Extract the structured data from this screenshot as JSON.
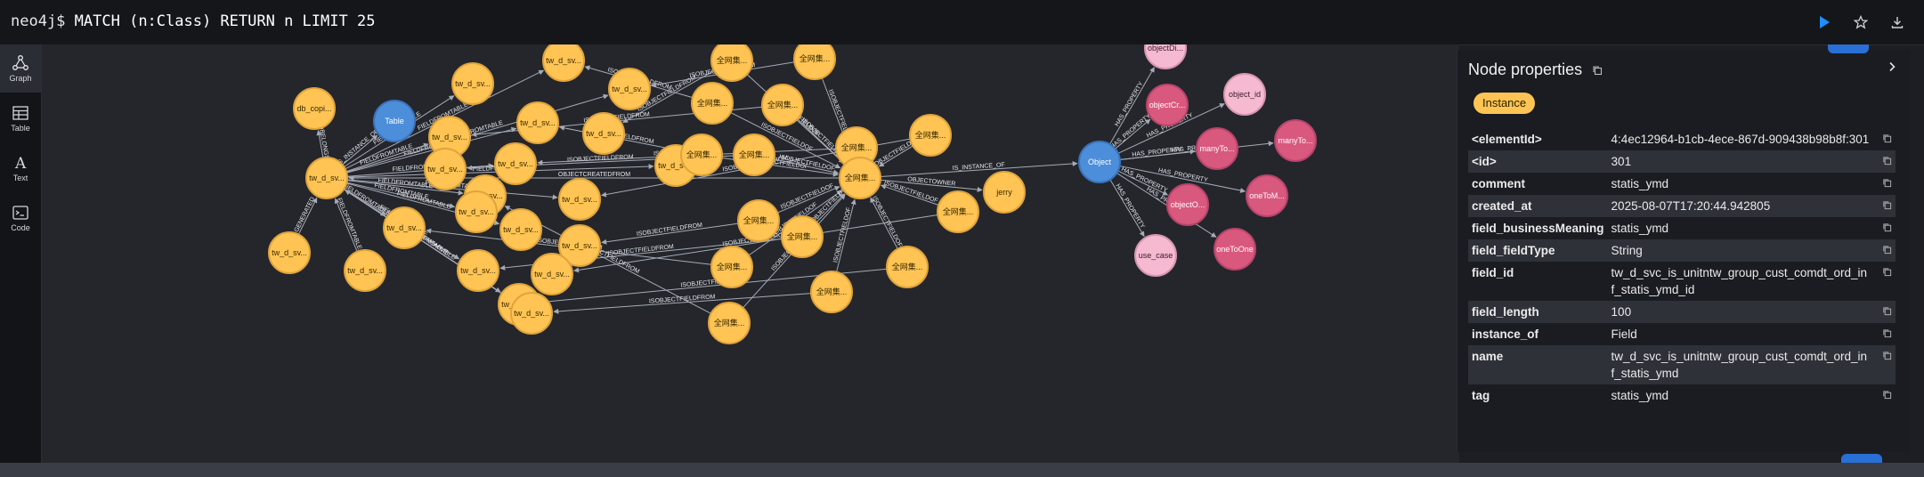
{
  "editor": {
    "prompt": "neo4j$",
    "query": "MATCH (n:Class) RETURN n LIMIT 25"
  },
  "sidebar": {
    "graph": "Graph",
    "table": "Table",
    "text": "Text",
    "code": "Code"
  },
  "colors": {
    "field": "#ffc454",
    "field_stroke": "#e0a43a",
    "blue": "#4c8eda",
    "pink_light": "#f5b9d0",
    "pink_dark": "#d9587e",
    "edge": "#a5abb6"
  },
  "graph": {
    "nodes": [
      {
        "id": "n1",
        "label": "db_copi...",
        "color": "field"
      },
      {
        "id": "n2",
        "label": "Table",
        "color": "blue"
      },
      {
        "id": "n3",
        "label": "tw_d_sv...",
        "color": "field"
      },
      {
        "id": "n4",
        "label": "tw_d_sv...",
        "color": "field"
      },
      {
        "id": "n5",
        "label": "tw_d_sv...",
        "color": "field"
      },
      {
        "id": "n6",
        "label": "tw_d_sv...",
        "color": "field"
      },
      {
        "id": "n7",
        "label": "tw_d_sv...",
        "color": "field"
      },
      {
        "id": "n8",
        "label": "tw_d_sv...",
        "color": "field"
      },
      {
        "id": "n9",
        "label": "tw_d_sv...",
        "color": "field"
      },
      {
        "id": "n10",
        "label": "tw_d_sv...",
        "color": "field"
      },
      {
        "id": "n11",
        "label": "tw_d_sv...",
        "color": "field"
      },
      {
        "id": "n12",
        "label": "tw_d_sv...",
        "color": "field"
      },
      {
        "id": "n13",
        "label": "tw_d_sv...",
        "color": "field"
      },
      {
        "id": "n14",
        "label": "tw_d_sv...",
        "color": "field"
      },
      {
        "id": "n15",
        "label": "tw_d_sv...",
        "color": "field"
      },
      {
        "id": "n16",
        "label": "tw_d_sv...",
        "color": "field"
      },
      {
        "id": "n17",
        "label": "tw_d_sv...",
        "color": "field"
      },
      {
        "id": "n18",
        "label": "tw_d_sv...",
        "color": "field"
      },
      {
        "id": "n19",
        "label": "tw_d_sv...",
        "color": "field"
      },
      {
        "id": "n20",
        "label": "tw_d_sv...",
        "color": "field"
      },
      {
        "id": "n21",
        "label": "tw_d_sv...",
        "color": "field"
      },
      {
        "id": "n22",
        "label": "tw_d_sv...",
        "color": "field"
      },
      {
        "id": "n23",
        "label": "tw_d_sv...",
        "color": "field"
      },
      {
        "id": "n24",
        "label": "tw_d_sv...",
        "color": "field"
      },
      {
        "id": "c1",
        "label": "全网集...",
        "color": "field"
      },
      {
        "id": "c2",
        "label": "全网集...",
        "color": "field"
      },
      {
        "id": "c3",
        "label": "全网集...",
        "color": "field"
      },
      {
        "id": "c4",
        "label": "全网集...",
        "color": "field"
      },
      {
        "id": "c5",
        "label": "全网集...",
        "color": "field"
      },
      {
        "id": "c6",
        "label": "全网集...",
        "color": "field"
      },
      {
        "id": "c7",
        "label": "全网集...",
        "color": "field"
      },
      {
        "id": "c8",
        "label": "全网集...",
        "color": "field"
      },
      {
        "id": "c9",
        "label": "全网集...",
        "color": "field"
      },
      {
        "id": "c10",
        "label": "全网集...",
        "color": "field"
      },
      {
        "id": "c11",
        "label": "全网集...",
        "color": "field"
      },
      {
        "id": "c12",
        "label": "全网集...",
        "color": "field"
      },
      {
        "id": "c13",
        "label": "全网集...",
        "color": "field"
      },
      {
        "id": "c14",
        "label": "全网集...",
        "color": "field"
      },
      {
        "id": "c15",
        "label": "全网集...",
        "color": "field"
      },
      {
        "id": "c16",
        "label": "全网集...",
        "color": "field"
      },
      {
        "id": "jerry",
        "label": "jerry",
        "color": "field"
      },
      {
        "id": "obj",
        "label": "Object",
        "color": "blue"
      },
      {
        "id": "p1",
        "label": "objectDi...",
        "color": "pink_light"
      },
      {
        "id": "p2",
        "label": "object_id",
        "color": "pink_light"
      },
      {
        "id": "p3",
        "label": "objectCr...",
        "color": "pink_dark"
      },
      {
        "id": "p4",
        "label": "manyTo...",
        "color": "pink_dark"
      },
      {
        "id": "p5",
        "label": "manyTo...",
        "color": "pink_dark"
      },
      {
        "id": "p6",
        "label": "oneToM...",
        "color": "pink_dark"
      },
      {
        "id": "p7",
        "label": "objectO...",
        "color": "pink_dark"
      },
      {
        "id": "p8",
        "label": "oneToOne",
        "color": "pink_dark"
      },
      {
        "id": "p9",
        "label": "use_case",
        "color": "pink_light"
      }
    ],
    "edges": [
      {
        "s": "n3",
        "t": "n1",
        "label": "FIELDBELONGSTOTA"
      },
      {
        "s": "n3",
        "t": "n2",
        "label": "IS_INSTANCE_OF"
      },
      {
        "s": "n3",
        "t": "n5",
        "label": "FIELDFROMTABLE"
      },
      {
        "s": "n3",
        "t": "n4",
        "label": "FIELDFROMTABLE"
      },
      {
        "s": "n3",
        "t": "n7",
        "label": "FIELDFROMTABLE"
      },
      {
        "s": "n3",
        "t": "n8",
        "label": "FIELDFROMTABLE"
      },
      {
        "s": "n3",
        "t": "n10",
        "label": "FIELDFROMTABLE"
      },
      {
        "s": "n3",
        "t": "n11",
        "label": "FIELDFROMTABLE"
      },
      {
        "s": "n3",
        "t": "n13",
        "label": "FIELDFROMTABLE"
      },
      {
        "s": "n3",
        "t": "n14",
        "label": "FIELDFROMTABLE"
      },
      {
        "s": "n3",
        "t": "n15",
        "label": "FIELDFROMTABLE"
      },
      {
        "s": "n3",
        "t": "n17",
        "label": "FIELDFROMTABLE"
      },
      {
        "s": "n3",
        "t": "n18",
        "label": "FIELDFROMTABLE"
      },
      {
        "s": "n3",
        "t": "n20",
        "label": "FIELDFROMTABLE"
      },
      {
        "s": "n3",
        "t": "n21",
        "label": "FIELDFROMTABLE"
      },
      {
        "s": "n3",
        "t": "n9",
        "label": "FIELDFROMTABLE"
      },
      {
        "s": "n22",
        "t": "n3",
        "label": "GENERATED"
      },
      {
        "s": "n23",
        "t": "n3",
        "label": "FIELDFROMTABLE"
      },
      {
        "s": "n24",
        "t": "n3",
        "label": "FIELDFROMTABLE"
      },
      {
        "s": "c16",
        "t": "n3",
        "label": "OBJECTCREATEDFROM"
      },
      {
        "s": "c1",
        "t": "n6",
        "label": "ISOBJECTFIELDFROM"
      },
      {
        "s": "c3",
        "t": "n5",
        "label": "ISOBJECTFIELDFROM"
      },
      {
        "s": "c2",
        "t": "n9",
        "label": "ISOBJECTFIELDFROM"
      },
      {
        "s": "c4",
        "t": "n8",
        "label": "ISOBJECTFIELDFROM"
      },
      {
        "s": "c5",
        "t": "n7",
        "label": "ISOBJECTFIELDFROM"
      },
      {
        "s": "c6",
        "t": "n10",
        "label": "ISOBJECTFIELDFROM"
      },
      {
        "s": "c7",
        "t": "n12",
        "label": "ISOBJECTFIELDFROM"
      },
      {
        "s": "c8",
        "t": "n14",
        "label": "ISOBJECTFIELDFROM"
      },
      {
        "s": "c9",
        "t": "n16",
        "label": "ISOBJECTFIELDFROM"
      },
      {
        "s": "c10",
        "t": "n18",
        "label": "ISOBJECTFIELDFROM"
      },
      {
        "s": "c11",
        "t": "n19",
        "label": "ISOBJECTFIELDFROM"
      },
      {
        "s": "c12",
        "t": "n20",
        "label": "ISOBJECTFIELDFROM"
      },
      {
        "s": "c13",
        "t": "n21",
        "label": "ISOBJECTFIELDFROM"
      },
      {
        "s": "c14",
        "t": "n24",
        "label": "ISOBJECTFIELDFROM"
      },
      {
        "s": "c15",
        "t": "n11",
        "label": "ISOBJECTFIELDFROM"
      },
      {
        "s": "c1",
        "t": "c16",
        "label": "ISOBJECTFIELDOF"
      },
      {
        "s": "c2",
        "t": "c16",
        "label": "ISOBJECTFIELDOF"
      },
      {
        "s": "c3",
        "t": "c16",
        "label": "ISOBJECTFIELDOF"
      },
      {
        "s": "c4",
        "t": "c16",
        "label": "ISOBJECTFIELDOF"
      },
      {
        "s": "c5",
        "t": "c16",
        "label": "ISOBJECTFIELDOF"
      },
      {
        "s": "c6",
        "t": "c16",
        "label": "ISOBJECTFIELDOF"
      },
      {
        "s": "c7",
        "t": "c16",
        "label": "ISOBJECTFIELDOF"
      },
      {
        "s": "c8",
        "t": "c16",
        "label": "ISOBJECTFIELDOF"
      },
      {
        "s": "c9",
        "t": "c16",
        "label": "ISOBJECTFIELDOF"
      },
      {
        "s": "c10",
        "t": "c16",
        "label": "ISOBJECTFIELDOF"
      },
      {
        "s": "c11",
        "t": "c16",
        "label": "ISOBJECTFIELDOF"
      },
      {
        "s": "c12",
        "t": "c16",
        "label": "ISOBJECTFIELDOF"
      },
      {
        "s": "c13",
        "t": "c16",
        "label": "ISOBJECTFIELDOF"
      },
      {
        "s": "c14",
        "t": "c16",
        "label": "ISOBJECTFIELDOF"
      },
      {
        "s": "c15",
        "t": "c16",
        "label": "ISOBJECTFIELDOF"
      },
      {
        "s": "c16",
        "t": "jerry",
        "label": "OBJECTOWNER"
      },
      {
        "s": "c16",
        "t": "obj",
        "label": "IS_INSTANCE_OF"
      },
      {
        "s": "obj",
        "t": "p1",
        "label": "HAS_PROPERTY"
      },
      {
        "s": "obj",
        "t": "p2",
        "label": "HAS_PROPERTY"
      },
      {
        "s": "obj",
        "t": "p3",
        "label": "HAS_PROPERTY"
      },
      {
        "s": "obj",
        "t": "p4",
        "label": "HAS_PROPERTY"
      },
      {
        "s": "obj",
        "t": "p5",
        "label": "HAS_PROPERTY"
      },
      {
        "s": "obj",
        "t": "p6",
        "label": "HAS_PROPERTY"
      },
      {
        "s": "obj",
        "t": "p7",
        "label": "HAS_PROPERTY"
      },
      {
        "s": "obj",
        "t": "p8",
        "label": "HAS_PROPERTY"
      },
      {
        "s": "obj",
        "t": "p9",
        "label": "HAS_PROPERTY"
      }
    ]
  },
  "panel": {
    "title": "Node properties",
    "node_label": "Instance",
    "properties": [
      {
        "key": "<elementId>",
        "value": "4:4ec12964-b1cb-4ece-867d-909438b98b8f:301"
      },
      {
        "key": "<id>",
        "value": "301"
      },
      {
        "key": "comment",
        "value": "statis_ymd"
      },
      {
        "key": "created_at",
        "value": "2025-08-07T17:20:44.942805"
      },
      {
        "key": "field_businessMeaning",
        "value": "statis_ymd"
      },
      {
        "key": "field_fieldType",
        "value": "String"
      },
      {
        "key": "field_id",
        "value": "tw_d_svc_is_unitntw_group_cust_comdt_ord_inf_statis_ymd_id"
      },
      {
        "key": "field_length",
        "value": "100"
      },
      {
        "key": "instance_of",
        "value": "Field"
      },
      {
        "key": "name",
        "value": "tw_d_svc_is_unitntw_group_cust_comdt_ord_inf_statis_ymd"
      },
      {
        "key": "tag",
        "value": "statis_ymd"
      }
    ]
  }
}
